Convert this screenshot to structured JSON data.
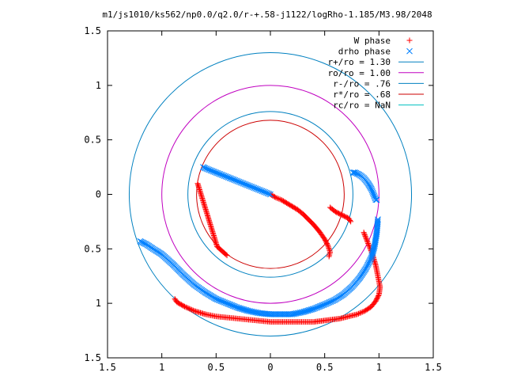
{
  "chart_data": {
    "type": "scatter",
    "title": "m1/js1010/ks562/np0.0/q2.0/r-+.58-j1122/logRho-1.185/M3.98/2048",
    "xlabel": "",
    "ylabel": "",
    "xlim": [
      -1.5,
      1.5
    ],
    "ylim": [
      -1.5,
      1.5
    ],
    "grid": false,
    "legend_position": "top-right",
    "x_tick_labels": [
      "1.5",
      "1",
      "0.5",
      "0",
      "0.5",
      "1",
      "1.5"
    ],
    "y_tick_labels": [
      "1.5",
      "1",
      "0.5",
      "0",
      "0.5",
      "1",
      "1.5"
    ],
    "tick_values": [
      -1.5,
      -1,
      -0.5,
      0,
      0.5,
      1,
      1.5
    ],
    "series": [
      {
        "name": "W phase",
        "marker": "plus",
        "color": "#ff0000",
        "segments": [
          {
            "x": [
              0.0,
              0.05,
              0.1,
              0.15,
              0.2,
              0.25,
              0.3,
              0.35,
              0.4,
              0.45,
              0.5,
              0.53,
              0.55,
              0.54
            ],
            "y": [
              0.0,
              -0.03,
              -0.05,
              -0.08,
              -0.11,
              -0.14,
              -0.18,
              -0.23,
              -0.28,
              -0.34,
              -0.41,
              -0.47,
              -0.53,
              -0.57
            ]
          },
          {
            "x": [
              0.74,
              0.72,
              0.68,
              0.64,
              0.6,
              0.55
            ],
            "y": [
              -0.25,
              -0.22,
              -0.2,
              -0.18,
              -0.16,
              -0.12
            ]
          },
          {
            "x": [
              0.86,
              0.9,
              0.94,
              0.97,
              0.99,
              1.01,
              1.0,
              0.97,
              0.93,
              0.87,
              0.8,
              0.72,
              0.64,
              0.56,
              0.48,
              0.4,
              0.3,
              0.2,
              0.1,
              0.0,
              -0.1,
              -0.2,
              -0.3,
              -0.4,
              -0.5,
              -0.6,
              -0.7,
              -0.79,
              -0.86,
              -0.88
            ],
            "y": [
              -0.35,
              -0.45,
              -0.55,
              -0.65,
              -0.75,
              -0.85,
              -0.92,
              -0.98,
              -1.03,
              -1.07,
              -1.1,
              -1.12,
              -1.14,
              -1.15,
              -1.16,
              -1.17,
              -1.17,
              -1.17,
              -1.17,
              -1.17,
              -1.16,
              -1.15,
              -1.14,
              -1.13,
              -1.12,
              -1.1,
              -1.07,
              -1.03,
              -0.99,
              -0.96
            ]
          },
          {
            "x": [
              -0.67,
              -0.49,
              -0.4
            ],
            "y": [
              0.1,
              -0.48,
              -0.56
            ]
          }
        ]
      },
      {
        "name": "drho phase",
        "marker": "cross",
        "color": "#0080ff",
        "segments": [
          {
            "x": [
              0.0,
              -0.05,
              -0.1,
              -0.15,
              -0.2,
              -0.25,
              -0.3,
              -0.35,
              -0.4,
              -0.45,
              -0.5,
              -0.55,
              -0.6,
              -0.62
            ],
            "y": [
              0.0,
              0.02,
              0.04,
              0.06,
              0.08,
              0.1,
              0.12,
              0.14,
              0.16,
              0.18,
              0.2,
              0.22,
              0.24,
              0.25
            ]
          },
          {
            "x": [
              0.98,
              0.97,
              0.95,
              0.93,
              0.9,
              0.86,
              0.82,
              0.78,
              0.76
            ],
            "y": [
              -0.05,
              -0.05,
              0.0,
              0.05,
              0.1,
              0.15,
              0.18,
              0.2,
              0.2
            ]
          },
          {
            "x": [
              0.99,
              0.98,
              0.96,
              0.93,
              0.88,
              0.82,
              0.75,
              0.67,
              0.59,
              0.5,
              0.4,
              0.3,
              0.2,
              0.1,
              0.0,
              -0.1,
              -0.2,
              -0.3,
              -0.4,
              -0.5,
              -0.6,
              -0.7,
              -0.8,
              -0.9,
              -1.0,
              -1.08,
              -1.14,
              -1.18,
              -1.2
            ],
            "y": [
              -0.23,
              -0.35,
              -0.47,
              -0.58,
              -0.68,
              -0.77,
              -0.85,
              -0.92,
              -0.97,
              -1.01,
              -1.05,
              -1.08,
              -1.1,
              -1.1,
              -1.1,
              -1.09,
              -1.07,
              -1.04,
              -1.0,
              -0.96,
              -0.9,
              -0.83,
              -0.74,
              -0.64,
              -0.55,
              -0.5,
              -0.46,
              -0.44,
              -0.43
            ]
          }
        ]
      }
    ],
    "circles": [
      {
        "name": "r+/ro = 1.30",
        "radius": 1.3,
        "color": "#0080c0"
      },
      {
        "name": "ro/ro = 1.00",
        "radius": 1.0,
        "color": "#c000c0"
      },
      {
        "name": "r-/ro = .76",
        "radius": 0.76,
        "color": "#0080c0"
      },
      {
        "name": "r*/ro = .68",
        "radius": 0.68,
        "color": "#cc0000"
      },
      {
        "name": "rc/ro = NaN",
        "radius": null,
        "color": "#00c0c0"
      }
    ]
  }
}
